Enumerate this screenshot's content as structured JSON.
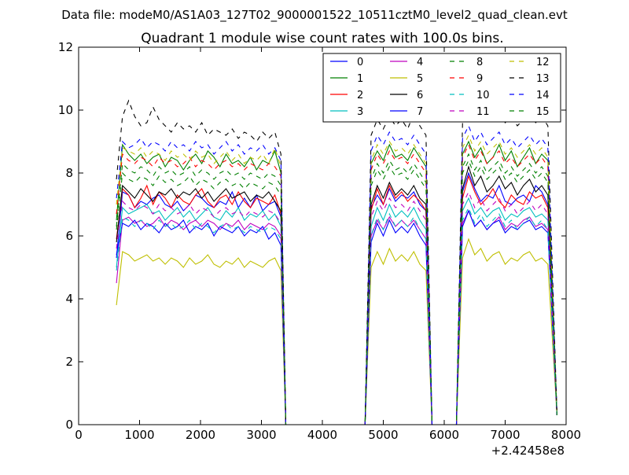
{
  "suptitle": "Data file: modeM0/AS1A03_127T02_9000001522_10511cztM0_level2_quad_clean.evt",
  "chart_data": {
    "type": "line",
    "title": "Quadrant 1 module wise count rates with 100.0s bins.",
    "xlabel": "",
    "ylabel": "",
    "x_offset_label": "+2.42458e8",
    "xlim": [
      0,
      8000
    ],
    "ylim": [
      0,
      12
    ],
    "xticks": [
      0,
      1000,
      2000,
      3000,
      4000,
      5000,
      6000,
      7000,
      8000
    ],
    "yticks": [
      0,
      2,
      4,
      6,
      8,
      10,
      12
    ],
    "xtick_labels": [
      "0",
      "1000",
      "2000",
      "3000",
      "4000",
      "5000",
      "6000",
      "7000",
      "8000"
    ],
    "ytick_labels": [
      "0",
      "2",
      "4",
      "6",
      "8",
      "10",
      "12"
    ],
    "grid": false,
    "legend_position": "top-right",
    "legend_columns": 4,
    "segments": [
      {
        "x_start": 620,
        "x_step": 100,
        "count": 28,
        "edge": 3400
      },
      {
        "x_start": 4800,
        "x_step": 100,
        "count": 10,
        "edge": 4700,
        "edge_end": 5800
      },
      {
        "x_start": 6300,
        "x_step": 100,
        "count": 15,
        "edge": 6200,
        "edge_end": 7850
      }
    ],
    "series": [
      {
        "name": "0",
        "color": "#0000ff",
        "dash": false,
        "s1": [
          5.3,
          7.4,
          7.3,
          6.9,
          7.1,
          7.0,
          7.2,
          7.3,
          7.0,
          6.9,
          7.1,
          6.8,
          7.0,
          7.3,
          7.2,
          7.0,
          6.9,
          7.1,
          7.0,
          7.4,
          6.9,
          7.2,
          6.9,
          7.3,
          6.8,
          7.0,
          7.1,
          6.6
        ],
        "s2": [
          6.9,
          7.3,
          7.0,
          7.5,
          7.1,
          7.3,
          7.2,
          7.4,
          7.0,
          6.8
        ],
        "s3": [
          7.4,
          8.0,
          7.5,
          7.1,
          7.3,
          7.2,
          7.6,
          7.1,
          7.0,
          7.2,
          7.3,
          7.1,
          7.6,
          7.4,
          7.0
        ]
      },
      {
        "name": "1",
        "color": "#008000",
        "dash": false,
        "s1": [
          6.5,
          8.9,
          8.6,
          8.4,
          8.6,
          8.3,
          8.5,
          8.6,
          8.2,
          8.5,
          8.4,
          8.1,
          8.4,
          8.6,
          8.3,
          8.7,
          8.5,
          8.2,
          8.6,
          8.3,
          8.4,
          8.2,
          8.5,
          8.1,
          8.4,
          8.3,
          8.7,
          8.0
        ],
        "s2": [
          8.3,
          8.7,
          8.4,
          8.9,
          8.5,
          8.6,
          8.4,
          8.8,
          8.5,
          8.2
        ],
        "s3": [
          8.6,
          9.0,
          8.5,
          8.8,
          8.3,
          8.5,
          8.9,
          8.4,
          8.7,
          8.2,
          8.5,
          8.8,
          8.3,
          8.6,
          8.4
        ]
      },
      {
        "name": "2",
        "color": "#ff0000",
        "dash": false,
        "s1": [
          5.9,
          7.5,
          7.3,
          6.9,
          7.2,
          7.6,
          7.0,
          7.4,
          7.2,
          6.9,
          7.3,
          7.1,
          7.0,
          7.3,
          7.5,
          7.1,
          6.9,
          7.2,
          7.3,
          7.0,
          7.4,
          7.1,
          6.9,
          7.2,
          7.1,
          7.0,
          7.3,
          6.7
        ],
        "s2": [
          6.8,
          7.5,
          7.0,
          7.6,
          7.2,
          7.4,
          7.1,
          7.3,
          7.1,
          6.8
        ],
        "s3": [
          7.2,
          7.9,
          7.4,
          7.0,
          7.2,
          7.5,
          7.1,
          6.9,
          7.3,
          7.1,
          7.0,
          7.4,
          7.2,
          7.3,
          6.9
        ]
      },
      {
        "name": "3",
        "color": "#00bfbf",
        "dash": false,
        "s1": [
          5.0,
          6.9,
          6.7,
          6.8,
          6.9,
          7.0,
          6.7,
          6.8,
          6.5,
          6.7,
          6.9,
          6.6,
          6.8,
          6.5,
          6.7,
          6.9,
          6.6,
          6.5,
          6.8,
          6.6,
          6.9,
          6.5,
          6.7,
          6.6,
          6.8,
          6.5,
          6.7,
          6.3
        ],
        "s2": [
          6.3,
          6.9,
          6.5,
          7.0,
          6.6,
          6.8,
          6.6,
          6.9,
          6.5,
          6.2
        ],
        "s3": [
          6.8,
          7.2,
          6.7,
          6.9,
          6.6,
          6.8,
          6.9,
          6.5,
          6.7,
          6.6,
          6.8,
          6.9,
          6.6,
          6.7,
          6.5
        ]
      },
      {
        "name": "4",
        "color": "#bf00bf",
        "dash": false,
        "s1": [
          4.5,
          6.5,
          6.6,
          6.4,
          6.5,
          6.3,
          6.4,
          6.6,
          6.3,
          6.5,
          6.4,
          6.2,
          6.4,
          6.5,
          6.3,
          6.5,
          6.4,
          6.2,
          6.4,
          6.3,
          6.5,
          6.2,
          6.4,
          6.3,
          6.2,
          6.4,
          6.3,
          6.0
        ],
        "s2": [
          6.0,
          6.5,
          6.2,
          6.6,
          6.3,
          6.5,
          6.3,
          6.5,
          6.2,
          5.9
        ],
        "s3": [
          6.4,
          6.8,
          6.3,
          6.5,
          6.2,
          6.4,
          6.6,
          6.2,
          6.4,
          6.3,
          6.5,
          6.6,
          6.3,
          6.4,
          6.2
        ]
      },
      {
        "name": "5",
        "color": "#bfbf00",
        "dash": false,
        "s1": [
          3.8,
          5.5,
          5.4,
          5.2,
          5.3,
          5.4,
          5.2,
          5.3,
          5.1,
          5.3,
          5.2,
          5.0,
          5.3,
          5.1,
          5.2,
          5.4,
          5.1,
          5.0,
          5.2,
          5.1,
          5.3,
          5.0,
          5.2,
          5.1,
          5.0,
          5.2,
          5.3,
          4.9
        ],
        "s2": [
          5.0,
          5.5,
          5.1,
          5.6,
          5.2,
          5.4,
          5.2,
          5.5,
          5.1,
          4.9
        ],
        "s3": [
          5.3,
          5.9,
          5.4,
          5.6,
          5.2,
          5.4,
          5.5,
          5.1,
          5.3,
          5.2,
          5.4,
          5.5,
          5.2,
          5.3,
          5.1
        ]
      },
      {
        "name": "6",
        "color": "#000000",
        "dash": false,
        "s1": [
          5.8,
          7.6,
          7.4,
          7.2,
          7.5,
          7.3,
          7.1,
          7.4,
          7.3,
          7.5,
          7.2,
          7.4,
          7.3,
          7.5,
          7.2,
          7.4,
          7.1,
          7.3,
          7.5,
          7.2,
          7.3,
          7.4,
          7.1,
          7.3,
          7.2,
          7.4,
          7.1,
          6.8
        ],
        "s2": [
          7.0,
          7.6,
          7.2,
          7.7,
          7.3,
          7.5,
          7.3,
          7.6,
          7.2,
          7.0
        ],
        "s3": [
          7.5,
          8.2,
          7.6,
          7.9,
          7.4,
          7.6,
          7.9,
          7.5,
          7.7,
          7.3,
          7.6,
          7.8,
          7.4,
          7.6,
          7.3
        ]
      },
      {
        "name": "7",
        "color": "#0000ff",
        "dash": false,
        "s1": [
          5.4,
          6.4,
          6.3,
          6.5,
          6.2,
          6.4,
          6.3,
          6.1,
          6.4,
          6.2,
          6.3,
          6.5,
          6.1,
          6.3,
          6.2,
          6.4,
          6.0,
          6.3,
          6.2,
          6.1,
          6.3,
          6.0,
          6.2,
          6.1,
          6.3,
          5.9,
          6.1,
          5.7
        ],
        "s2": [
          5.8,
          6.4,
          6.0,
          6.5,
          6.1,
          6.3,
          6.1,
          6.4,
          6.0,
          5.7
        ],
        "s3": [
          6.3,
          6.8,
          6.3,
          6.5,
          6.2,
          6.4,
          6.5,
          6.1,
          6.3,
          6.2,
          6.4,
          6.5,
          6.2,
          6.3,
          6.1
        ]
      },
      {
        "name": "8",
        "color": "#008000",
        "dash": true,
        "s1": [
          6.3,
          8.3,
          8.1,
          8.0,
          8.2,
          8.1,
          7.9,
          8.2,
          8.0,
          8.1,
          7.9,
          8.0,
          8.2,
          7.9,
          8.1,
          8.0,
          7.8,
          8.0,
          8.1,
          7.9,
          8.0,
          7.8,
          8.0,
          7.9,
          7.8,
          8.0,
          7.9,
          7.6
        ],
        "s2": [
          7.8,
          8.3,
          8.0,
          8.4,
          8.1,
          8.2,
          8.0,
          8.3,
          8.0,
          7.7
        ],
        "s3": [
          8.2,
          8.6,
          8.1,
          8.4,
          8.0,
          8.2,
          8.4,
          8.0,
          8.2,
          7.9,
          8.1,
          8.3,
          8.0,
          8.2,
          7.9
        ]
      },
      {
        "name": "9",
        "color": "#ff0000",
        "dash": true,
        "s1": [
          6.7,
          8.6,
          8.4,
          8.3,
          8.5,
          8.4,
          8.2,
          8.5,
          8.3,
          8.4,
          8.2,
          8.3,
          8.5,
          8.2,
          8.4,
          8.3,
          8.1,
          8.3,
          8.4,
          8.2,
          8.3,
          8.1,
          8.3,
          8.2,
          8.1,
          8.3,
          8.2,
          7.9
        ],
        "s2": [
          8.1,
          8.6,
          8.3,
          8.7,
          8.4,
          8.5,
          8.3,
          8.6,
          8.3,
          8.0
        ],
        "s3": [
          8.5,
          8.9,
          8.4,
          8.7,
          8.3,
          8.5,
          8.7,
          8.3,
          8.5,
          8.2,
          8.4,
          8.6,
          8.3,
          8.5,
          8.2
        ]
      },
      {
        "name": "10",
        "color": "#00bfbf",
        "dash": true,
        "s1": [
          4.9,
          6.6,
          6.5,
          6.3,
          6.5,
          6.4,
          6.2,
          6.5,
          6.3,
          6.4,
          6.2,
          6.3,
          6.5,
          6.2,
          6.4,
          6.3,
          6.1,
          6.3,
          6.4,
          6.2,
          6.3,
          6.1,
          6.3,
          6.2,
          6.1,
          6.3,
          6.2,
          5.9
        ],
        "s2": [
          6.0,
          6.6,
          6.2,
          6.7,
          6.3,
          6.5,
          6.3,
          6.6,
          6.2,
          5.9
        ],
        "s3": [
          6.5,
          6.9,
          6.4,
          6.7,
          6.3,
          6.5,
          6.7,
          6.3,
          6.5,
          6.2,
          6.4,
          6.6,
          6.3,
          6.5,
          6.2
        ]
      },
      {
        "name": "11",
        "color": "#bf00bf",
        "dash": true,
        "s1": [
          5.6,
          7.1,
          6.9,
          6.8,
          7.0,
          6.9,
          6.7,
          7.0,
          6.8,
          6.9,
          6.7,
          6.8,
          7.0,
          6.7,
          6.9,
          6.8,
          6.6,
          6.8,
          6.9,
          6.7,
          6.8,
          6.6,
          6.8,
          6.7,
          6.6,
          6.8,
          6.7,
          6.4
        ],
        "s2": [
          6.6,
          7.1,
          6.8,
          7.2,
          6.9,
          7.0,
          6.8,
          7.1,
          6.8,
          6.5
        ],
        "s3": [
          7.0,
          7.4,
          6.9,
          7.2,
          6.8,
          7.0,
          7.2,
          6.8,
          7.0,
          6.7,
          6.9,
          7.1,
          6.8,
          7.0,
          6.7
        ]
      },
      {
        "name": "12",
        "color": "#bfbf00",
        "dash": true,
        "s1": [
          7.0,
          8.8,
          8.7,
          8.6,
          8.8,
          8.5,
          8.7,
          8.6,
          8.4,
          8.7,
          8.5,
          8.6,
          8.4,
          8.7,
          8.5,
          8.6,
          8.3,
          8.5,
          8.7,
          8.4,
          8.6,
          8.3,
          8.5,
          8.4,
          8.6,
          8.3,
          8.8,
          8.2
        ],
        "s2": [
          8.4,
          8.9,
          8.6,
          9.0,
          8.7,
          8.8,
          8.6,
          8.9,
          8.6,
          8.3
        ],
        "s3": [
          8.8,
          9.2,
          8.7,
          9.0,
          8.6,
          8.8,
          9.0,
          8.6,
          8.8,
          8.5,
          8.7,
          8.9,
          8.6,
          8.8,
          8.5
        ]
      },
      {
        "name": "13",
        "color": "#000000",
        "dash": true,
        "s1": [
          7.8,
          9.8,
          10.3,
          9.8,
          9.5,
          9.6,
          10.1,
          9.7,
          9.5,
          9.3,
          9.6,
          9.4,
          9.5,
          9.3,
          9.6,
          9.2,
          9.4,
          9.3,
          9.2,
          9.4,
          9.1,
          9.3,
          9.2,
          9.0,
          9.3,
          9.1,
          9.3,
          8.6
        ],
        "s2": [
          9.2,
          9.7,
          9.4,
          9.8,
          9.5,
          9.7,
          9.4,
          9.9,
          9.5,
          9.2
        ],
        "s3": [
          9.6,
          10.3,
          9.8,
          10.1,
          9.6,
          9.8,
          10.0,
          9.6,
          9.8,
          9.5,
          9.7,
          9.9,
          9.6,
          9.8,
          9.5
        ]
      },
      {
        "name": "14",
        "color": "#0000ff",
        "dash": true,
        "s1": [
          7.2,
          9.0,
          8.8,
          8.9,
          9.1,
          8.8,
          9.0,
          8.9,
          8.7,
          9.0,
          8.8,
          8.9,
          8.7,
          9.0,
          8.8,
          8.9,
          8.6,
          8.8,
          9.0,
          8.7,
          8.9,
          8.6,
          8.8,
          8.7,
          8.9,
          8.6,
          8.8,
          8.4
        ],
        "s2": [
          8.7,
          9.2,
          8.9,
          9.3,
          9.0,
          9.1,
          8.9,
          9.2,
          8.9,
          8.6
        ],
        "s3": [
          9.1,
          9.5,
          9.0,
          9.3,
          8.9,
          9.1,
          9.3,
          8.9,
          9.1,
          8.8,
          9.0,
          9.2,
          8.9,
          9.1,
          8.8
        ]
      },
      {
        "name": "15",
        "color": "#008000",
        "dash": true,
        "s1": [
          6.2,
          8.0,
          7.8,
          7.7,
          7.9,
          7.8,
          7.6,
          7.9,
          7.7,
          7.8,
          7.6,
          7.7,
          7.9,
          7.6,
          7.8,
          7.7,
          7.5,
          7.7,
          7.8,
          7.6,
          7.7,
          7.5,
          7.7,
          7.6,
          7.5,
          7.7,
          7.6,
          7.3
        ],
        "s2": [
          7.6,
          8.1,
          7.8,
          8.2,
          7.9,
          8.0,
          7.8,
          8.1,
          7.8,
          7.5
        ],
        "s3": [
          8.0,
          8.4,
          7.9,
          8.2,
          7.8,
          8.0,
          8.2,
          7.8,
          8.0,
          7.7,
          7.9,
          8.1,
          7.8,
          8.0,
          7.7
        ]
      }
    ]
  }
}
